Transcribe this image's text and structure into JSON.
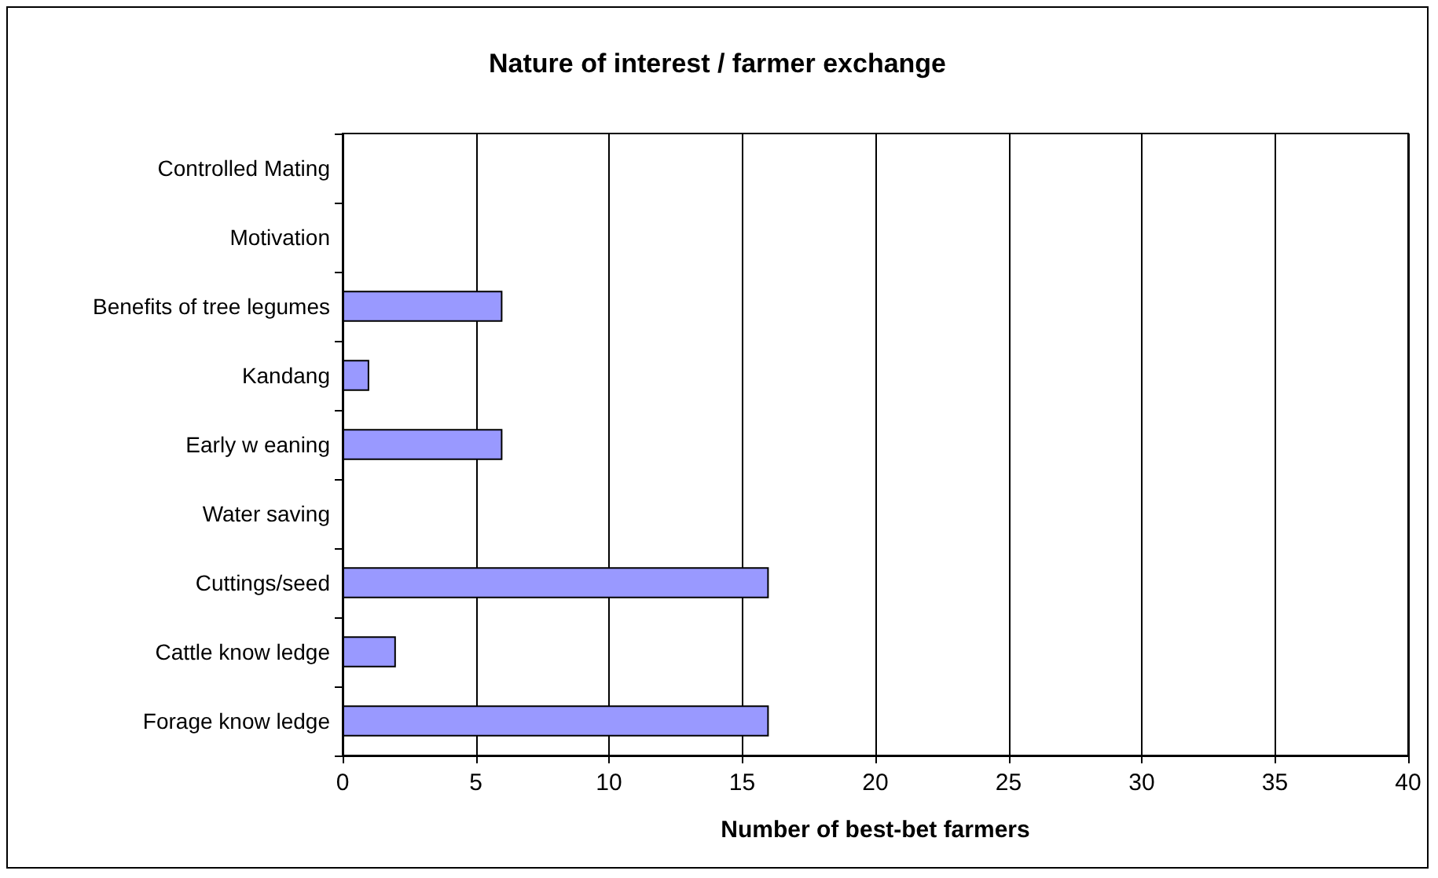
{
  "chart_data": {
    "type": "bar",
    "orientation": "horizontal",
    "title": "Nature of interest / farmer exchange",
    "xlabel": "Number of best-bet farmers",
    "categories": [
      "Controlled Mating",
      "Motivation",
      "Benefits of tree legumes",
      "Kandang",
      "Early w eaning",
      "Water saving",
      "Cuttings/seed",
      "Cattle know ledge",
      "Forage know ledge"
    ],
    "values": [
      0,
      0,
      6,
      1,
      6,
      0,
      16,
      2,
      16
    ],
    "color": "#9999ff",
    "xlim": [
      0,
      40
    ],
    "xticks": [
      0,
      5,
      10,
      15,
      20,
      25,
      30,
      35,
      40
    ],
    "grid": "x"
  }
}
